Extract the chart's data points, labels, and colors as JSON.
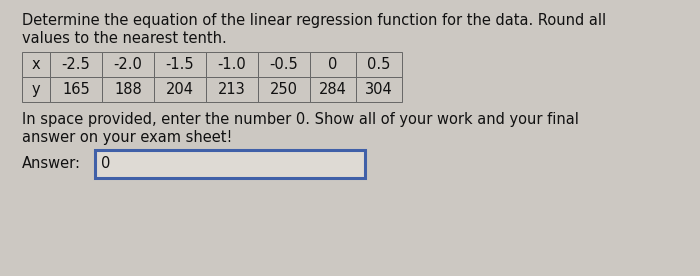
{
  "title_line1": "Determine the equation of the linear regression function for the data. Round all",
  "title_line2": "values to the nearest tenth.",
  "x_values": [
    "-2.5",
    "-2.0",
    "-1.5",
    "-1.0",
    "-0.5",
    "0",
    "0.5"
  ],
  "y_values": [
    "165",
    "188",
    "204",
    "213",
    "250",
    "284",
    "304"
  ],
  "instruction_line1": "In space provided, enter the number 0. Show all of your work and your final",
  "instruction_line2": "answer on your exam sheet!",
  "answer_label": "Answer:",
  "answer_value": "0",
  "bg_color": "#ccc8c2",
  "table_bg": "#ccc8c2",
  "answer_box_bg": "#dedad4",
  "answer_box_border": "#4060a8",
  "text_color": "#111111",
  "font_size_text": 10.5,
  "font_size_table": 10.5,
  "fig_width": 7.0,
  "fig_height": 2.76,
  "dpi": 100
}
